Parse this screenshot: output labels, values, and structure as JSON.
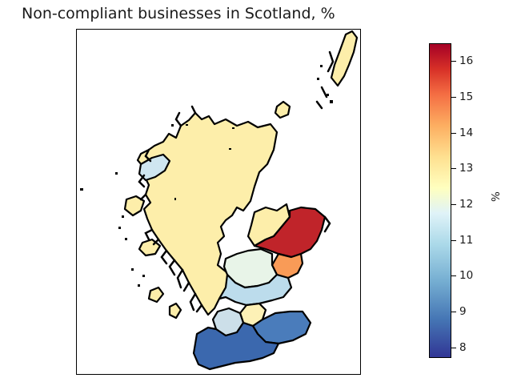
{
  "title": "Non-compliant businesses in Scotland, %",
  "colorbar": {
    "label": "%",
    "ticks": [
      "8",
      "9",
      "10",
      "11",
      "12",
      "13",
      "14",
      "15",
      "16"
    ],
    "min": 7.7,
    "max": 16.5,
    "colormap": "RdYlBu_r",
    "colors": [
      "#313695",
      "#4575b4",
      "#74add1",
      "#abd9e9",
      "#e0f3f8",
      "#ffffbf",
      "#fee090",
      "#fdae61",
      "#f46d43",
      "#d73027",
      "#a50026"
    ]
  },
  "map": {
    "region_colors": {
      "highlands": "#fdeeaa",
      "aberdeenshire_north": "#c0242a",
      "aberdeen_area": "#f99b57",
      "west_isles": "#cfe6f0",
      "central_light": "#e8f4e8",
      "central_blue": "#bcdcec",
      "southwest": "#3b68ae",
      "borders": "#4a7cbb",
      "lothian": "#ccdfe9",
      "fife": "#fdf1b6"
    }
  }
}
